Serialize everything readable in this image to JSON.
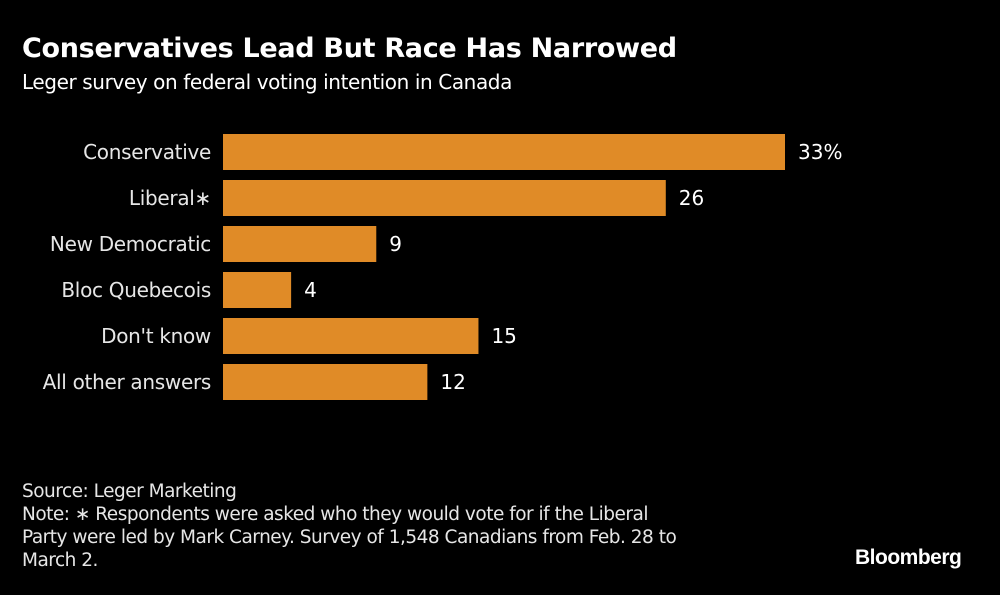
{
  "header": {
    "title": "Conservatives Lead But Race Has Narrowed",
    "subtitle": "Leger survey on federal voting intention in Canada"
  },
  "chart_data": {
    "type": "bar",
    "orientation": "horizontal",
    "title": "Conservatives Lead But Race Has Narrowed",
    "subtitle": "Leger survey on federal voting intention in Canada",
    "categories": [
      "Conservative",
      "Liberal*",
      "New Democratic",
      "Bloc Quebecois",
      "Don't know",
      "All other answers"
    ],
    "values": [
      33,
      26,
      9,
      4,
      15,
      12
    ],
    "value_labels": [
      "33%",
      "26",
      "9",
      "4",
      "15",
      "12"
    ],
    "unit": "%",
    "xlabel": "",
    "ylabel": "",
    "xlim": [
      0,
      33
    ],
    "grid": false,
    "legend": "none",
    "bar_color": "#e08b27"
  },
  "footer": {
    "source": "Source: Leger Marketing",
    "note_lines": [
      "Note: ∗ Respondents were asked who they would vote for if the Liberal",
      "Party were led by Mark Carney. Survey of 1,548 Canadians from Feb. 28 to",
      "March 2."
    ],
    "logo": "Bloomberg"
  }
}
